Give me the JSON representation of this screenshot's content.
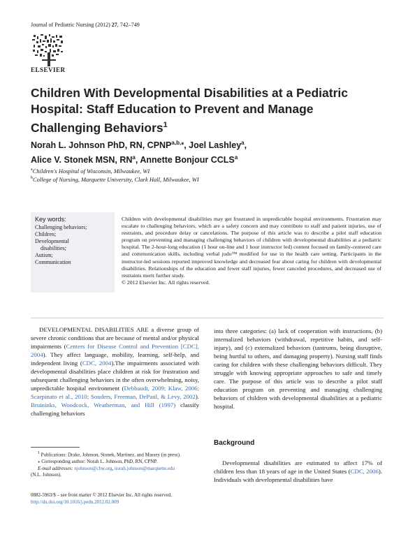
{
  "journal": {
    "name": "Journal of Pediatric Nursing (2012) ",
    "volume": "27",
    "pages": ", 742–749"
  },
  "publisher": "ELSEVIER",
  "article": {
    "title": "Children With Developmental Disabilities at a Pediatric Hospital: Staff Education to Prevent and Manage Challenging Behaviors",
    "title_sup": "1",
    "authors_line1": "Norah L. Johnson PhD, RN, CPNP",
    "authors_line1_sup": "a,b,⁎",
    "authors_line1_b": ", Joel Lashley",
    "authors_line1_b_sup": "a",
    "authors_line1_end": ",",
    "authors_line2": "Alice V. Stonek MSN, RN",
    "authors_line2_sup": "a",
    "authors_line2_b": ", Annette Bonjour CCLS",
    "authors_line2_b_sup": "a",
    "affiliations": [
      {
        "mark": "a",
        "text": "Children's Hospital of Wisconsin, Milwaukee, WI"
      },
      {
        "mark": "b",
        "text": "College of Nursing, Marquette University, Clark Hall, Milwaukee, WI"
      }
    ]
  },
  "keywords": {
    "title": "Key words:",
    "items": [
      "Challenging behaviors;",
      "Children;",
      "Developmental",
      "disabilities;",
      "Autism;",
      "Communication"
    ]
  },
  "abstract": {
    "text": "Children with developmental disabilities may get frustrated in unpredictable hospital environments. Frustration may escalate to challenging behaviors, which are a safety concern and may contribute to staff and patient injuries, use of restraints, and procedure delay or cancelations. The purpose of this article was to describe a pilot staff education program on preventing and managing challenging behaviors of children with developmental disabilities at a pediatric hospital. The 2-hour-long education (1 hour on-line and 1 hour instructor led) content focused on family-centered care and communication skills, including verbal judo™ modified for use in the health care setting. Participants in the instructor-led sessions reported improved knowledge and decreased fear about caring for children with developmental disabilities. Relationships of the education and fewer staff injuries, fewer canceled procedures, and decreased use of restraints merit further study.",
    "copyright": "© 2012 Elsevier Inc. All rights reserved."
  },
  "body": {
    "col1": {
      "lead": "DEVELOPMENTAL DISABILITIES ARE",
      "t1": " a diverse group of severe chronic conditions that are because of mental and/or physical impairments (",
      "c1": "Centers for Disease Control and Prevention [CDC], 2004",
      "t2": "). They affect language, mobility, learning, self-help, and independent living (",
      "c2": "CDC, 2004",
      "t3": ").The impairments associated with developmental disabilities place children at risk for frustration and subsequent challenging behaviors in the often overwhelming, noisy, unpredictable hospital environment (",
      "c3": "Debbaudt, 2009; Klaw, 2006; Scarpinato et al., 2010; Souders, Freeman, DePaul, & Levy, 2002",
      "t4": "). ",
      "c4": "Bruininks, Woodcock, Weatherman, and Hill (1997)",
      "t5": " classify challenging behaviors"
    },
    "col2": "into three categories: (a) lack of cooperation with instructions, (b) internalized behaviors (withdrawal, repetitive habits, and self-injury), and (c) externalized behaviors (tantrums, being disruptive, being hurtful to others, and damaging property). Nursing staff finds caring for children with these challenging behaviors difficult. They struggle with knowing appropriate approaches to safe and timely care. The purpose of this article was to describe a pilot staff education program on preventing and managing challenging behaviors of children with developmental disabilities at a pediatric hospital.",
    "heading": "Background",
    "bg_t1": "Developmental disabilities are estimated to affect 17% of children less than 18 years of age in the United States (",
    "bg_c1": "CDC, 2006",
    "bg_t2": "). Individuals with developmental disabilities have"
  },
  "footnotes": {
    "fn1_mark": "1",
    "fn1": "Publications: Drake, Johnson, Stonek, Martinez, and Massey (in press).",
    "fn2_mark": "⁎",
    "fn2": "Corresponding author: Norah L. Johnson, PhD, RN, CPNP.",
    "fn3_label": "E-mail addresses:",
    "fn3_email1": "njohnson@chw.org",
    "fn3_sep": ", ",
    "fn3_email2": "norah.johnson@marquette.edu",
    "fn3_end": "(N.L. Johnson)."
  },
  "issn": {
    "line1": "0882-5963/$ – see front matter © 2012 Elsevier Inc. All rights reserved.",
    "doi": "http://dx.doi.org/10.1016/j.pedn.2012.02.009"
  }
}
